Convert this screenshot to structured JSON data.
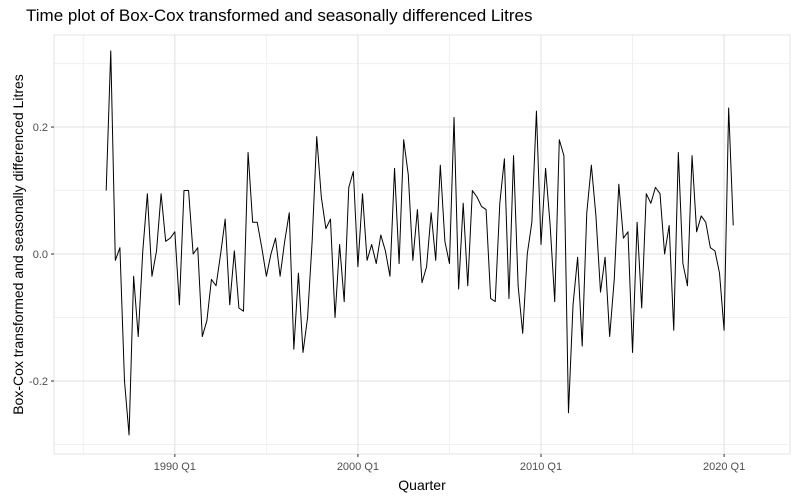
{
  "chart_data": {
    "type": "line",
    "title": "Time plot of Box-Cox transformed and seasonally differenced Litres",
    "xlabel": "Quarter",
    "ylabel": "Box-Cox transformed and seasonally differenced Litres",
    "x_ticks": [
      {
        "label": "1990 Q1",
        "value": 1990.0
      },
      {
        "label": "2000 Q1",
        "value": 2000.0
      },
      {
        "label": "2010 Q1",
        "value": 2010.0
      },
      {
        "label": "2020 Q1",
        "value": 2020.0
      }
    ],
    "y_ticks": [
      {
        "label": "-0.2",
        "value": -0.2
      },
      {
        "label": "0.0",
        "value": 0.0
      },
      {
        "label": "0.2",
        "value": 0.2
      }
    ],
    "xlim": [
      1983.4,
      2023.6
    ],
    "ylim": [
      -0.315,
      0.345
    ],
    "grid": true,
    "legend": "none",
    "line_color": "#000000",
    "series": [
      {
        "x_start": 1986.25,
        "x_step": 0.25,
        "values": [
          0.1,
          0.32,
          -0.01,
          0.01,
          -0.2,
          -0.285,
          -0.035,
          -0.13,
          0.005,
          0.095,
          -0.035,
          0.005,
          0.095,
          0.02,
          0.025,
          0.035,
          -0.08,
          0.1,
          0.1,
          0.0,
          0.01,
          -0.13,
          -0.105,
          -0.04,
          -0.05,
          0.0,
          0.055,
          -0.08,
          0.005,
          -0.085,
          -0.09,
          0.16,
          0.05,
          0.05,
          0.01,
          -0.035,
          0.0,
          0.025,
          -0.035,
          0.02,
          0.065,
          -0.15,
          -0.03,
          -0.155,
          -0.1,
          0.02,
          0.185,
          0.09,
          0.04,
          0.055,
          -0.1,
          0.015,
          -0.075,
          0.105,
          0.13,
          -0.02,
          0.095,
          -0.01,
          0.015,
          -0.015,
          0.03,
          0.005,
          -0.035,
          0.135,
          -0.015,
          0.18,
          0.125,
          -0.01,
          0.07,
          -0.045,
          -0.02,
          0.065,
          -0.01,
          0.14,
          0.02,
          -0.015,
          0.215,
          -0.055,
          0.08,
          -0.05,
          0.1,
          0.09,
          0.075,
          0.07,
          -0.07,
          -0.075,
          0.08,
          0.15,
          -0.07,
          0.155,
          -0.05,
          -0.125,
          0.0,
          0.05,
          0.225,
          0.015,
          0.135,
          0.045,
          -0.075,
          0.18,
          0.155,
          -0.25,
          -0.08,
          -0.005,
          -0.145,
          0.065,
          0.14,
          0.06,
          -0.06,
          -0.005,
          -0.13,
          -0.04,
          0.11,
          0.025,
          0.035,
          -0.155,
          0.05,
          -0.085,
          0.095,
          0.08,
          0.105,
          0.095,
          0.0,
          0.045,
          -0.12,
          0.16,
          -0.015,
          -0.05,
          0.155,
          0.035,
          0.06,
          0.05,
          0.01,
          0.005,
          -0.03,
          -0.12,
          0.23,
          0.045
        ]
      }
    ]
  }
}
